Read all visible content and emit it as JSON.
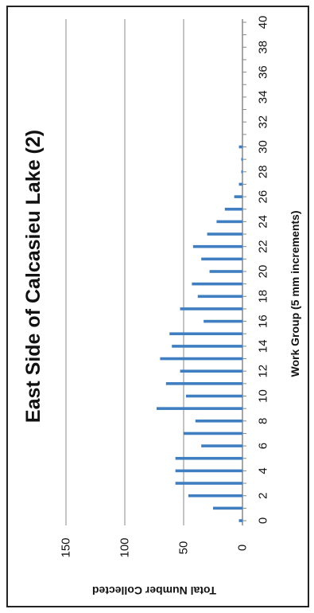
{
  "chart_data": {
    "type": "bar",
    "orientation": "rotated-90-clockwise",
    "title": "East Side of Calcasieu Lake (2)",
    "xlabel": "Work Group (5 mm increments)",
    "ylabel": "Total Number Collected",
    "grid": true,
    "x": [
      0,
      1,
      2,
      3,
      4,
      5,
      6,
      7,
      8,
      9,
      10,
      11,
      12,
      13,
      14,
      15,
      16,
      17,
      18,
      19,
      20,
      21,
      22,
      23,
      24,
      25,
      26,
      27,
      28,
      29,
      30,
      31,
      32,
      33,
      34,
      35,
      36,
      37,
      38,
      39,
      40
    ],
    "values": [
      3,
      25,
      46,
      57,
      57,
      57,
      35,
      50,
      40,
      73,
      48,
      65,
      53,
      70,
      60,
      62,
      33,
      53,
      38,
      43,
      28,
      35,
      42,
      30,
      22,
      15,
      7,
      3,
      1,
      1,
      3,
      0,
      0,
      0,
      0,
      0,
      0,
      0,
      0,
      0,
      0
    ],
    "xlim": [
      0,
      40
    ],
    "xticks": [
      "0",
      "2",
      "4",
      "6",
      "8",
      "10",
      "12",
      "14",
      "16",
      "18",
      "20",
      "22",
      "24",
      "26",
      "28",
      "30",
      "32",
      "34",
      "36",
      "38",
      "40"
    ],
    "ylim": [
      0,
      150
    ],
    "yticks": [
      "0",
      "50",
      "100",
      "150"
    ],
    "colors": {
      "bar": "#3f7fc1",
      "grid": "#888888",
      "frame": "#222222"
    }
  }
}
